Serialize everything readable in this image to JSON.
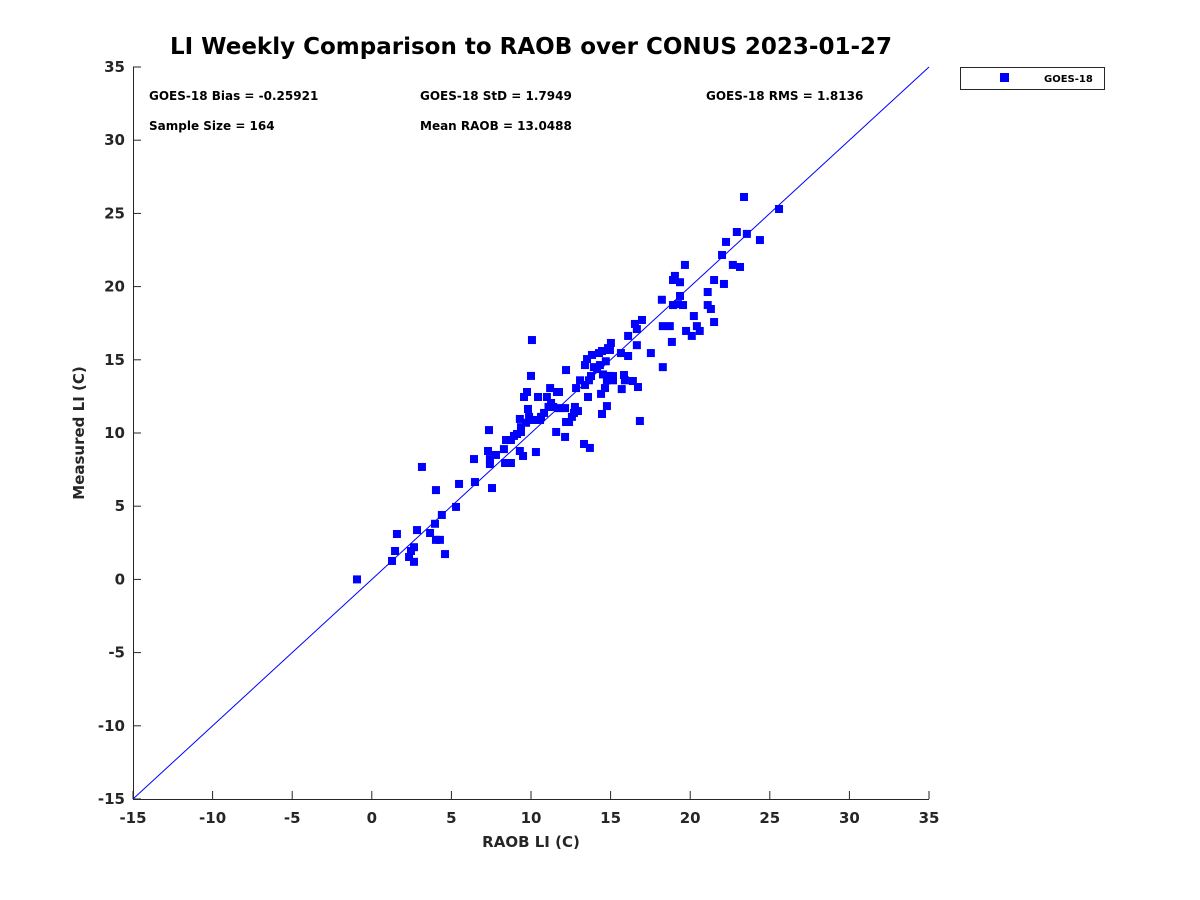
{
  "chart_data": {
    "type": "scatter",
    "title": "LI Weekly Comparison to RAOB over CONUS 2023-01-27",
    "xlabel": "RAOB LI (C)",
    "ylabel": "Measured LI (C)",
    "xlim": [
      -15,
      35
    ],
    "ylim": [
      -15,
      35
    ],
    "xticks": [
      "-15",
      "-10",
      "-5",
      "0",
      "5",
      "10",
      "15",
      "20",
      "25",
      "30",
      "35"
    ],
    "yticks": [
      "-15",
      "-10",
      "-5",
      "0",
      "5",
      "10",
      "15",
      "20",
      "25",
      "30",
      "35"
    ],
    "grid": false,
    "legend": {
      "position": "outside-top-right",
      "entries": [
        "GOES-18"
      ]
    },
    "reference_line": {
      "label": "1:1",
      "from": [
        -15,
        -15
      ],
      "to": [
        35,
        35
      ],
      "color": "#0000ff"
    },
    "annotations": {
      "bias": "GOES-18 Bias = -0.25921",
      "std": "GOES-18 StD = 1.7949",
      "rms": "GOES-18 RMS = 1.8136",
      "sample": "Sample Size = 164",
      "mean": "Mean RAOB = 13.0488"
    },
    "series": [
      {
        "name": "GOES-18",
        "color": "#0000ff",
        "marker": "square",
        "points": [
          [
            -0.93,
            0.0
          ],
          [
            1.27,
            1.26
          ],
          [
            1.46,
            1.94
          ],
          [
            1.58,
            3.1
          ],
          [
            2.34,
            1.53
          ],
          [
            2.46,
            1.94
          ],
          [
            2.65,
            2.2
          ],
          [
            2.65,
            1.2
          ],
          [
            2.84,
            3.37
          ],
          [
            3.15,
            7.68
          ],
          [
            3.66,
            3.17
          ],
          [
            3.97,
            3.8
          ],
          [
            4.03,
            6.1
          ],
          [
            4.03,
            2.7
          ],
          [
            4.28,
            2.7
          ],
          [
            4.4,
            4.4
          ],
          [
            4.6,
            1.73
          ],
          [
            5.29,
            4.95
          ],
          [
            5.48,
            6.52
          ],
          [
            6.42,
            8.22
          ],
          [
            6.48,
            6.65
          ],
          [
            7.3,
            8.77
          ],
          [
            7.36,
            10.2
          ],
          [
            7.42,
            8.22
          ],
          [
            7.42,
            7.88
          ],
          [
            7.55,
            6.24
          ],
          [
            7.8,
            8.5
          ],
          [
            8.3,
            8.9
          ],
          [
            8.43,
            9.52
          ],
          [
            8.37,
            7.95
          ],
          [
            8.74,
            9.52
          ],
          [
            8.74,
            7.95
          ],
          [
            8.93,
            9.8
          ],
          [
            9.12,
            9.93
          ],
          [
            9.3,
            8.77
          ],
          [
            9.3,
            10.96
          ],
          [
            9.37,
            10.07
          ],
          [
            9.37,
            10.4
          ],
          [
            9.5,
            8.43
          ],
          [
            9.56,
            12.46
          ],
          [
            9.69,
            10.7
          ],
          [
            9.75,
            12.8
          ],
          [
            9.81,
            11.64
          ],
          [
            9.88,
            11.1
          ],
          [
            9.94,
            10.89
          ],
          [
            10.0,
            13.9
          ],
          [
            10.06,
            16.35
          ],
          [
            10.25,
            10.89
          ],
          [
            10.31,
            8.7
          ],
          [
            10.44,
            12.46
          ],
          [
            10.57,
            10.89
          ],
          [
            10.63,
            11.1
          ],
          [
            10.82,
            11.37
          ],
          [
            11.0,
            12.46
          ],
          [
            11.1,
            11.78
          ],
          [
            11.2,
            13.07
          ],
          [
            11.26,
            12.05
          ],
          [
            11.4,
            11.78
          ],
          [
            11.58,
            10.07
          ],
          [
            11.63,
            12.8
          ],
          [
            11.76,
            12.8
          ],
          [
            11.7,
            11.7
          ],
          [
            12.14,
            9.73
          ],
          [
            12.2,
            14.3
          ],
          [
            12.14,
            11.7
          ],
          [
            12.2,
            10.75
          ],
          [
            12.39,
            10.75
          ],
          [
            12.57,
            11.1
          ],
          [
            12.7,
            11.37
          ],
          [
            12.76,
            11.78
          ],
          [
            12.83,
            13.07
          ],
          [
            12.95,
            11.5
          ],
          [
            13.08,
            13.6
          ],
          [
            13.33,
            9.25
          ],
          [
            13.39,
            14.64
          ],
          [
            13.39,
            13.28
          ],
          [
            13.52,
            15.05
          ],
          [
            13.58,
            12.46
          ],
          [
            13.64,
            13.6
          ],
          [
            13.7,
            8.98
          ],
          [
            13.77,
            13.89
          ],
          [
            13.83,
            15.33
          ],
          [
            13.95,
            14.5
          ],
          [
            14.15,
            14.37
          ],
          [
            14.27,
            15.46
          ],
          [
            14.33,
            14.64
          ],
          [
            14.4,
            12.67
          ],
          [
            14.46,
            11.3
          ],
          [
            14.46,
            15.6
          ],
          [
            14.52,
            14.0
          ],
          [
            14.65,
            13.07
          ],
          [
            14.7,
            14.9
          ],
          [
            14.77,
            13.6
          ],
          [
            14.77,
            11.84
          ],
          [
            14.84,
            15.8
          ],
          [
            14.9,
            13.9
          ],
          [
            14.96,
            15.67
          ],
          [
            15.02,
            16.15
          ],
          [
            15.15,
            13.6
          ],
          [
            15.15,
            13.89
          ],
          [
            15.65,
            15.46
          ],
          [
            15.7,
            13.0
          ],
          [
            15.84,
            13.96
          ],
          [
            15.9,
            13.6
          ],
          [
            16.1,
            15.26
          ],
          [
            16.1,
            16.63
          ],
          [
            16.4,
            13.55
          ],
          [
            16.53,
            17.45
          ],
          [
            16.65,
            17.1
          ],
          [
            16.65,
            16.0
          ],
          [
            16.72,
            13.14
          ],
          [
            16.84,
            10.82
          ],
          [
            16.97,
            17.72
          ],
          [
            17.53,
            15.46
          ],
          [
            18.22,
            19.1
          ],
          [
            18.28,
            17.3
          ],
          [
            18.28,
            14.5
          ],
          [
            18.72,
            17.3
          ],
          [
            18.85,
            16.22
          ],
          [
            18.92,
            20.45
          ],
          [
            18.92,
            18.74
          ],
          [
            19.04,
            20.73
          ],
          [
            19.23,
            18.8
          ],
          [
            19.36,
            20.3
          ],
          [
            19.36,
            19.36
          ],
          [
            19.55,
            18.74
          ],
          [
            19.67,
            21.48
          ],
          [
            19.74,
            16.97
          ],
          [
            20.1,
            16.63
          ],
          [
            20.23,
            17.99
          ],
          [
            20.42,
            17.3
          ],
          [
            20.6,
            16.97
          ],
          [
            21.1,
            19.63
          ],
          [
            21.1,
            18.74
          ],
          [
            21.3,
            18.47
          ],
          [
            21.5,
            20.45
          ],
          [
            21.5,
            17.58
          ],
          [
            22.0,
            22.16
          ],
          [
            22.12,
            20.18
          ],
          [
            22.25,
            23.05
          ],
          [
            22.68,
            21.48
          ],
          [
            22.93,
            23.73
          ],
          [
            23.13,
            21.34
          ],
          [
            23.38,
            26.12
          ],
          [
            23.56,
            23.6
          ],
          [
            24.38,
            23.18
          ],
          [
            25.58,
            25.3
          ]
        ]
      }
    ]
  }
}
